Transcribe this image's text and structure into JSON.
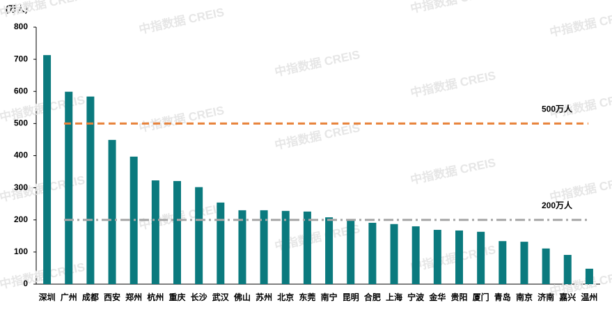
{
  "chart_data": {
    "type": "bar",
    "y_unit": "(万人)",
    "watermark": "中指数据 CREIS",
    "categories": [
      "深圳",
      "广州",
      "成都",
      "西安",
      "郑州",
      "杭州",
      "重庆",
      "长沙",
      "武汉",
      "佛山",
      "苏州",
      "北京",
      "东莞",
      "南宁",
      "昆明",
      "合肥",
      "上海",
      "宁波",
      "金华",
      "贵阳",
      "厦门",
      "青岛",
      "南京",
      "济南",
      "嘉兴",
      "温州"
    ],
    "values": [
      713,
      599,
      584,
      449,
      397,
      323,
      321,
      302,
      254,
      230,
      230,
      228,
      226,
      208,
      200,
      191,
      187,
      180,
      169,
      167,
      163,
      134,
      132,
      111,
      91,
      48
    ],
    "color": "#0b7a7e",
    "ylim": [
      0,
      800
    ],
    "yticks": [
      0,
      100,
      200,
      300,
      400,
      500,
      600,
      700,
      800
    ],
    "reference_lines": [
      {
        "value": 500,
        "label": "500万人",
        "color": "#e8823a",
        "style": "dashed"
      },
      {
        "value": 200,
        "label": "200万人",
        "color": "#a6a6a6",
        "style": "dashdot"
      }
    ]
  }
}
